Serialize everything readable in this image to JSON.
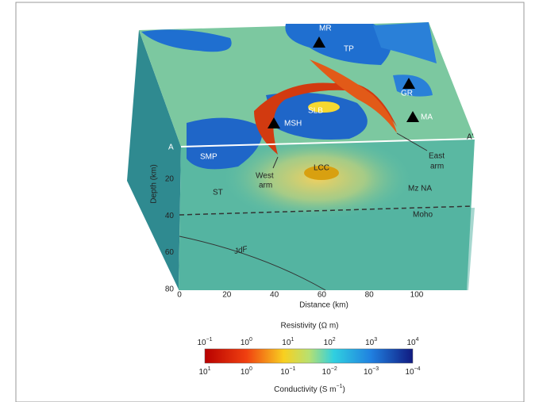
{
  "labels": {
    "features": [
      "MR",
      "TP",
      "GR",
      "MA",
      "SLB",
      "MSH",
      "SMP",
      "LCC",
      "ST",
      "Mz NA",
      "Moho",
      "JdF"
    ],
    "west_arm": [
      "West",
      "arm"
    ],
    "east_arm": [
      "East",
      "arm"
    ],
    "profile_start": "A",
    "profile_end": "A'"
  },
  "depth_axis": {
    "title": "Depth (km)",
    "ticks": [
      "20",
      "40",
      "60",
      "80"
    ]
  },
  "distance_axis": {
    "title": "Distance (km)",
    "ticks": [
      "0",
      "20",
      "40",
      "60",
      "80",
      "100"
    ]
  },
  "colorbar": {
    "top_title": "Resistivity (Ω m)",
    "bottom_title": "Conductivity (S m",
    "bottom_title_exp": "−1",
    "bottom_title_end": ")",
    "base": "10",
    "top_exponents": [
      "−1",
      "0",
      "1",
      "2",
      "3",
      "4"
    ],
    "bottom_exponents": [
      "1",
      "0",
      "−1",
      "−2",
      "−3",
      "−4"
    ]
  }
}
